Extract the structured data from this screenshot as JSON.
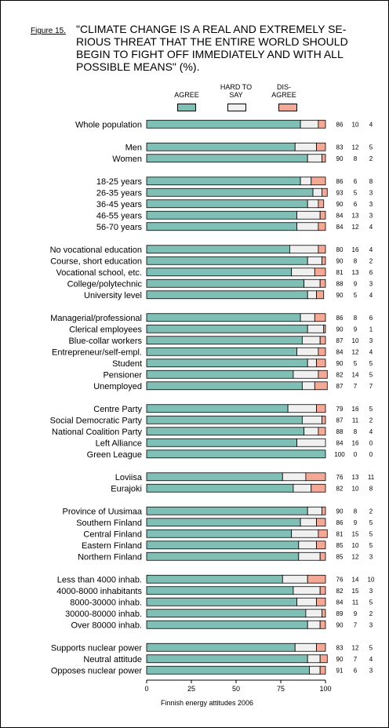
{
  "figure_label": "Figure 15.",
  "title": "\"CLIMATE CHANGE IS A REAL AND EXTREMELY SE-RIOUS THREAT THAT THE ENTIRE WORLD SHOULD BEGIN TO FIGHT OFF IMMEDIATELY AND WITH ALL POSSIBLE MEANS\" (%).",
  "legend": {
    "agree": "AGREE",
    "hard_to_say": "HARD TO SAY",
    "disagree": "DIS- AGREE"
  },
  "colors": {
    "agree": "#7fbfb6",
    "hard_to_say": "#f0f0f0",
    "disagree": "#f4a896"
  },
  "footer": "Finnish energy attitudes 2006",
  "chart_data": {
    "type": "bar",
    "orientation": "horizontal",
    "stacked": true,
    "xlim": [
      0,
      100
    ],
    "xticks": [
      "0",
      "25",
      "50",
      "75",
      "100"
    ],
    "groups": [
      {
        "rows": [
          {
            "label": "Whole population",
            "values": [
              86,
              10,
              4
            ]
          }
        ]
      },
      {
        "rows": [
          {
            "label": "Men",
            "values": [
              83,
              12,
              5
            ]
          },
          {
            "label": "Women",
            "values": [
              90,
              8,
              2
            ]
          }
        ]
      },
      {
        "rows": [
          {
            "label": "18-25 years",
            "values": [
              86,
              6,
              8
            ]
          },
          {
            "label": "26-35 years",
            "values": [
              93,
              5,
              3
            ]
          },
          {
            "label": "36-45 years",
            "values": [
              90,
              6,
              3
            ]
          },
          {
            "label": "46-55 years",
            "values": [
              84,
              13,
              3
            ]
          },
          {
            "label": "56-70 years",
            "values": [
              84,
              12,
              4
            ]
          }
        ]
      },
      {
        "rows": [
          {
            "label": "No vocational education",
            "values": [
              80,
              16,
              4
            ]
          },
          {
            "label": "Course, short education",
            "values": [
              90,
              8,
              2
            ]
          },
          {
            "label": "Vocational school, etc.",
            "values": [
              81,
              13,
              6
            ]
          },
          {
            "label": "College/polytechnic",
            "values": [
              88,
              9,
              3
            ]
          },
          {
            "label": "University level",
            "values": [
              90,
              5,
              4
            ]
          }
        ]
      },
      {
        "rows": [
          {
            "label": "Managerial/professional",
            "values": [
              86,
              8,
              6
            ]
          },
          {
            "label": "Clerical employees",
            "values": [
              90,
              9,
              1
            ]
          },
          {
            "label": "Blue-collar workers",
            "values": [
              87,
              10,
              3
            ]
          },
          {
            "label": "Entrepreneur/self-empl.",
            "values": [
              84,
              12,
              4
            ]
          },
          {
            "label": "Student",
            "values": [
              90,
              5,
              5
            ]
          },
          {
            "label": "Pensioner",
            "values": [
              82,
              14,
              5
            ]
          },
          {
            "label": "Unemployed",
            "values": [
              87,
              7,
              7
            ]
          }
        ]
      },
      {
        "rows": [
          {
            "label": "Centre Party",
            "values": [
              79,
              16,
              5
            ]
          },
          {
            "label": "Social Democratic Party",
            "values": [
              87,
              11,
              2
            ]
          },
          {
            "label": "National Coalition Party",
            "values": [
              88,
              8,
              4
            ]
          },
          {
            "label": "Left Alliance",
            "values": [
              84,
              16,
              0
            ]
          },
          {
            "label": "Green League",
            "values": [
              100,
              0,
              0
            ]
          }
        ]
      },
      {
        "rows": [
          {
            "label": "Loviisa",
            "values": [
              76,
              13,
              11
            ]
          },
          {
            "label": "Eurajoki",
            "values": [
              82,
              10,
              8
            ]
          }
        ]
      },
      {
        "rows": [
          {
            "label": "Province of Uusimaa",
            "values": [
              90,
              8,
              2
            ]
          },
          {
            "label": "Southern Finland",
            "values": [
              86,
              9,
              5
            ]
          },
          {
            "label": "Central Finland",
            "values": [
              81,
              15,
              5
            ]
          },
          {
            "label": "Eastern Finland",
            "values": [
              85,
              10,
              5
            ]
          },
          {
            "label": "Northern Finland",
            "values": [
              85,
              12,
              3
            ]
          }
        ]
      },
      {
        "rows": [
          {
            "label": "Less than 4000 inhab.",
            "values": [
              76,
              14,
              10
            ]
          },
          {
            "label": "4000-8000 inhabitants",
            "values": [
              82,
              15,
              3
            ]
          },
          {
            "label": "8000-30000 inhab.",
            "values": [
              84,
              11,
              5
            ]
          },
          {
            "label": "30000-80000 inhab.",
            "values": [
              89,
              9,
              2
            ]
          },
          {
            "label": "Over 80000 inhab.",
            "values": [
              90,
              7,
              3
            ]
          }
        ]
      },
      {
        "rows": [
          {
            "label": "Supports nuclear power",
            "values": [
              83,
              12,
              5
            ]
          },
          {
            "label": "Neutral attitude",
            "values": [
              90,
              7,
              4
            ]
          },
          {
            "label": "Opposes nuclear power",
            "values": [
              91,
              6,
              3
            ]
          }
        ]
      }
    ]
  }
}
